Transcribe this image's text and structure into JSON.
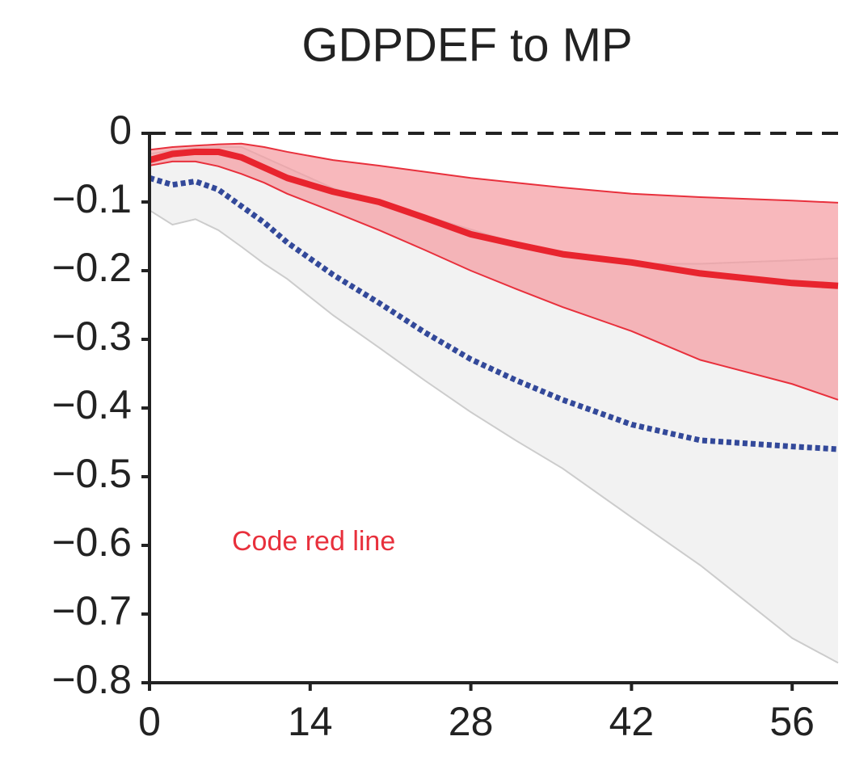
{
  "chart_data": {
    "type": "line",
    "title": "GDPDEF to MP",
    "annotation": "Code red line",
    "annotation_color": "#e8303c",
    "x": [
      0,
      2,
      4,
      6,
      8,
      10,
      12,
      16,
      20,
      24,
      28,
      32,
      36,
      42,
      48,
      56,
      60
    ],
    "xlim": [
      0,
      60
    ],
    "xticks": [
      0,
      14,
      28,
      42,
      56
    ],
    "ylim": [
      -0.8,
      0
    ],
    "yticks": [
      {
        "value": -0.8,
        "label": "−0.8"
      },
      {
        "value": -0.7,
        "label": "−0.7"
      },
      {
        "value": -0.6,
        "label": "−0.6"
      },
      {
        "value": -0.5,
        "label": "−0.5"
      },
      {
        "value": -0.4,
        "label": "−0.4"
      },
      {
        "value": -0.3,
        "label": "−0.3"
      },
      {
        "value": -0.2,
        "label": "−0.2"
      },
      {
        "value": -0.1,
        "label": "−0.1"
      },
      0
    ],
    "reference_line": 0,
    "bands": [
      {
        "color": "#f2f2f2",
        "edge_color": "#cccccc",
        "upper": [
          -0.03,
          -0.025,
          -0.022,
          -0.02,
          -0.02,
          -0.035,
          -0.05,
          -0.08,
          -0.1,
          -0.12,
          -0.14,
          -0.16,
          -0.175,
          -0.19,
          -0.19,
          -0.185,
          -0.182
        ],
        "lower": [
          -0.112,
          -0.133,
          -0.125,
          -0.141,
          -0.165,
          -0.19,
          -0.212,
          -0.265,
          -0.312,
          -0.36,
          -0.406,
          -0.448,
          -0.488,
          -0.559,
          -0.629,
          -0.735,
          -0.771
        ]
      },
      {
        "color": "#f59aa0",
        "edge_color": "#e8303c",
        "upper": [
          -0.024,
          -0.02,
          -0.018,
          -0.016,
          -0.015,
          -0.02,
          -0.027,
          -0.039,
          -0.047,
          -0.056,
          -0.065,
          -0.072,
          -0.079,
          -0.088,
          -0.093,
          -0.098,
          -0.101
        ],
        "lower": [
          -0.047,
          -0.041,
          -0.041,
          -0.048,
          -0.059,
          -0.072,
          -0.088,
          -0.114,
          -0.141,
          -0.17,
          -0.2,
          -0.227,
          -0.253,
          -0.288,
          -0.33,
          -0.365,
          -0.388
        ]
      }
    ],
    "series": [
      {
        "color": "#e8242e",
        "style": "solid",
        "values": [
          -0.039,
          -0.03,
          -0.027,
          -0.027,
          -0.035,
          -0.05,
          -0.065,
          -0.085,
          -0.1,
          -0.123,
          -0.147,
          -0.162,
          -0.176,
          -0.188,
          -0.204,
          -0.218,
          -0.222
        ]
      },
      {
        "color": "#33499a",
        "style": "dotted",
        "values": [
          -0.065,
          -0.075,
          -0.07,
          -0.082,
          -0.106,
          -0.13,
          -0.159,
          -0.206,
          -0.247,
          -0.29,
          -0.329,
          -0.36,
          -0.388,
          -0.424,
          -0.447,
          -0.456,
          -0.46
        ]
      }
    ]
  }
}
